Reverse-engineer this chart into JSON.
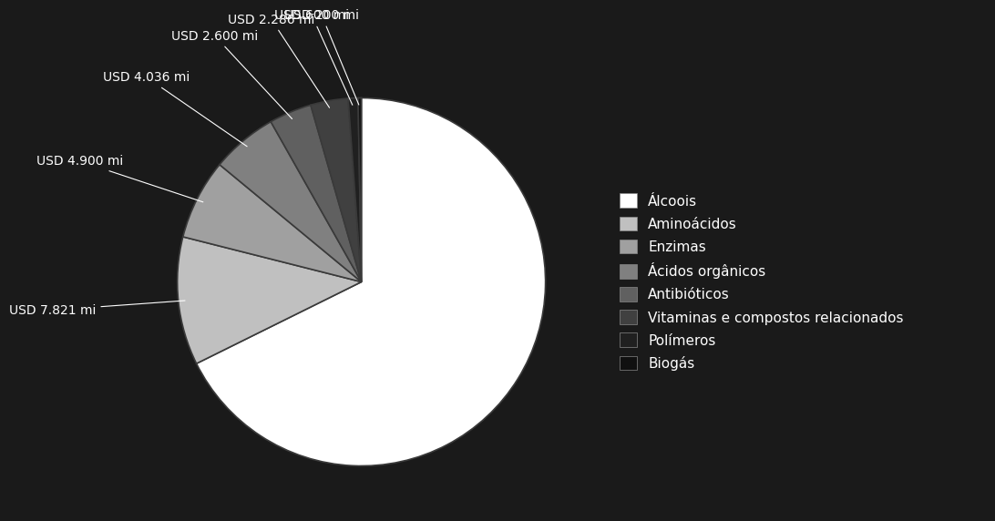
{
  "labels": [
    "Álcoois",
    "Aminoácidos",
    "Enzimas",
    "Ácidos orgânicos",
    "Antibióticos",
    "Vitaminas e compostos relacionados",
    "Polímeros",
    "Biogás"
  ],
  "values": [
    47000,
    7821,
    4900,
    4036,
    2600,
    2286,
    600,
    200
  ],
  "slice_colors": [
    "#ffffff",
    "#c0c0c0",
    "#a0a0a0",
    "#808080",
    "#606060",
    "#404040",
    "#202020",
    "#101010"
  ],
  "background_color": "#1a1a1a",
  "text_color": "#ffffff",
  "legend_fontsize": 11,
  "annotation_fontsize": 10,
  "startangle": 90
}
